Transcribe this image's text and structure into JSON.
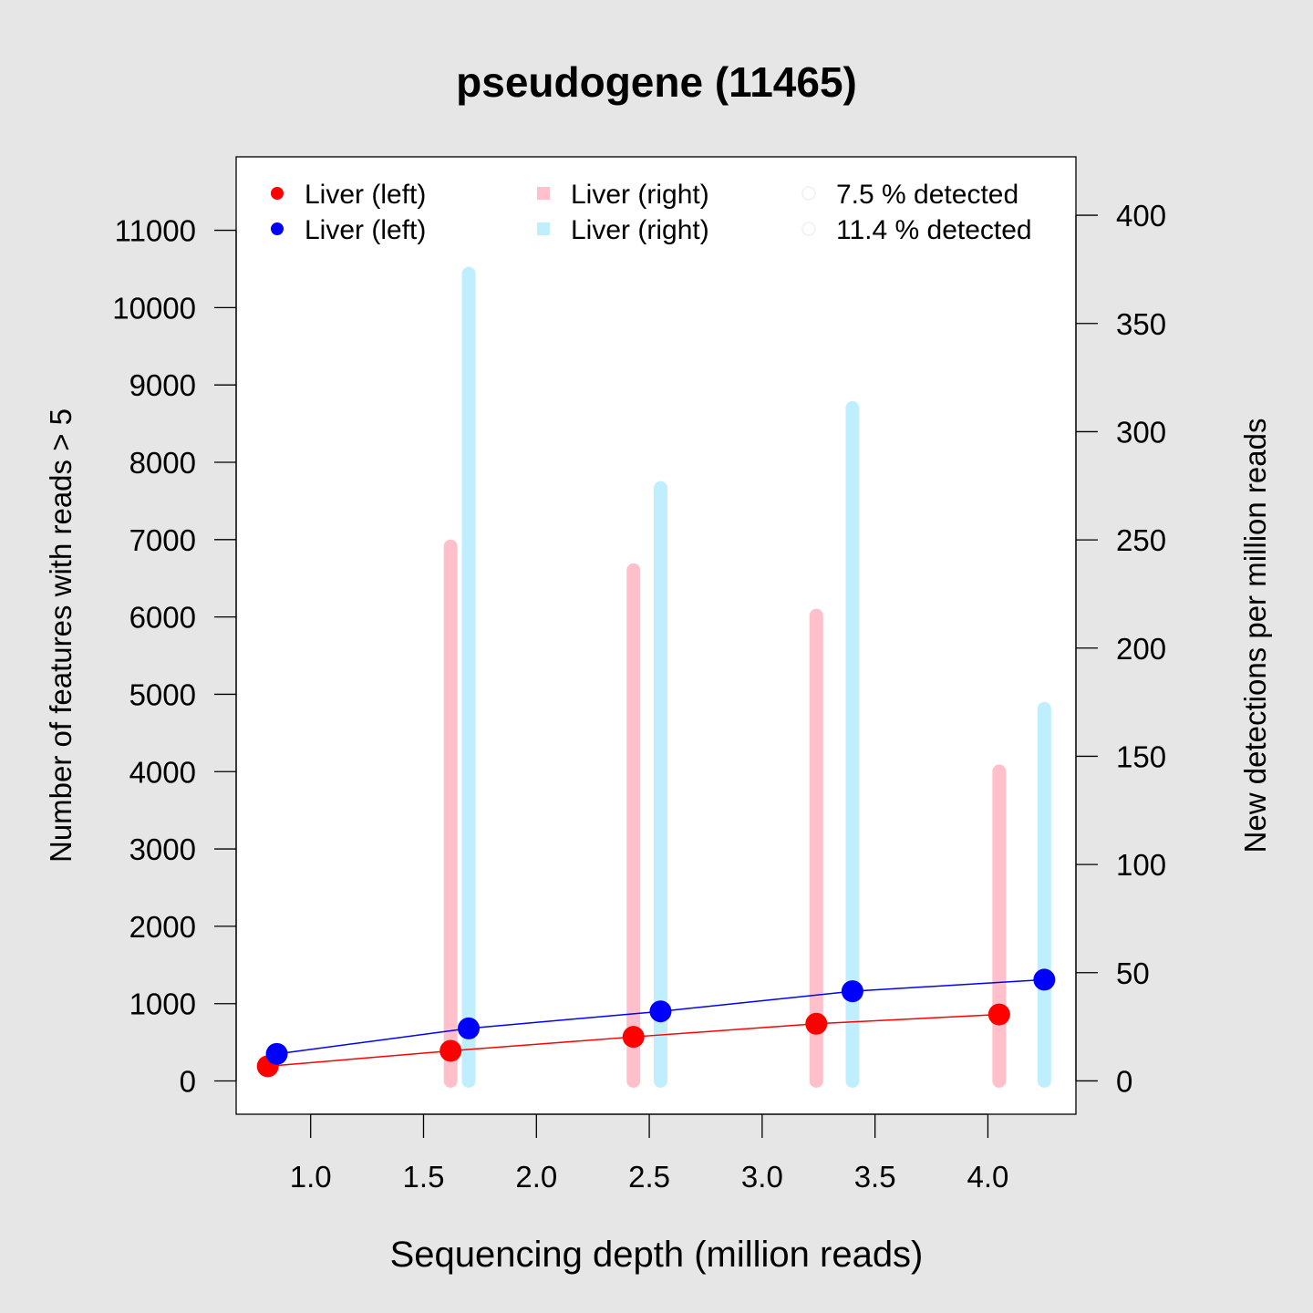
{
  "chart_data": {
    "type": "line",
    "title": "pseudogene (11465)",
    "xlabel": "Sequencing depth (million reads)",
    "ylabel_left": "Number of features with reads > 5",
    "ylabel_right": "New detections per million reads",
    "xlim": [
      0.67,
      4.39
    ],
    "ylim_left": [
      -430,
      11950
    ],
    "ylim_right": [
      -15.4,
      427
    ],
    "x_ticks": [
      "1.0",
      "1.5",
      "2.0",
      "2.5",
      "3.0",
      "3.5",
      "4.0"
    ],
    "y_ticks_left": [
      "0",
      "1000",
      "2000",
      "3000",
      "4000",
      "5000",
      "6000",
      "7000",
      "8000",
      "9000",
      "10000",
      "11000"
    ],
    "y_ticks_right": [
      "0",
      "50",
      "100",
      "150",
      "200",
      "250",
      "300",
      "350",
      "400"
    ],
    "colors": {
      "red": "#ff0000",
      "blue": "#0000ff",
      "pink": "#ffc0cb",
      "lightblue": "#bfefff",
      "background": "#e6e6e6"
    },
    "series": [
      {
        "name": "Liver (left)",
        "kind": "line-points",
        "axis": "left",
        "color": "#ff0000",
        "x": [
          0.81,
          1.62,
          2.43,
          3.24,
          4.05
        ],
        "y": [
          190,
          390,
          570,
          740,
          860
        ]
      },
      {
        "name": "Liver (left)",
        "kind": "line-points",
        "axis": "left",
        "color": "#0000ff",
        "x": [
          0.85,
          1.7,
          2.55,
          3.4,
          4.25
        ],
        "y": [
          350,
          680,
          900,
          1160,
          1310
        ]
      },
      {
        "name": "Liver (right)",
        "kind": "bars",
        "axis": "right",
        "color": "#ffc0cb",
        "x": [
          1.62,
          2.43,
          3.24,
          4.05
        ],
        "y": [
          247,
          236,
          215,
          143
        ]
      },
      {
        "name": "Liver (right)",
        "kind": "bars",
        "axis": "right",
        "color": "#bfefff",
        "x": [
          1.7,
          2.55,
          3.4,
          4.25
        ],
        "y": [
          373,
          274,
          311,
          172
        ]
      }
    ],
    "legend": {
      "placement": "top",
      "entries": [
        {
          "label": "Liver (left)",
          "symbol": "dot",
          "color": "#ff0000"
        },
        {
          "label": "Liver (left)",
          "symbol": "dot",
          "color": "#0000ff"
        },
        {
          "label": "Liver (right)",
          "symbol": "square",
          "color": "#ffc0cb"
        },
        {
          "label": "Liver (right)",
          "symbol": "square",
          "color": "#bfefff"
        },
        {
          "label": "7.5 % detected",
          "symbol": "circle-faint",
          "color": "#f0f0f0"
        },
        {
          "label": "11.4 % detected",
          "symbol": "circle-faint",
          "color": "#f0f0f0"
        }
      ]
    },
    "grid": false
  }
}
